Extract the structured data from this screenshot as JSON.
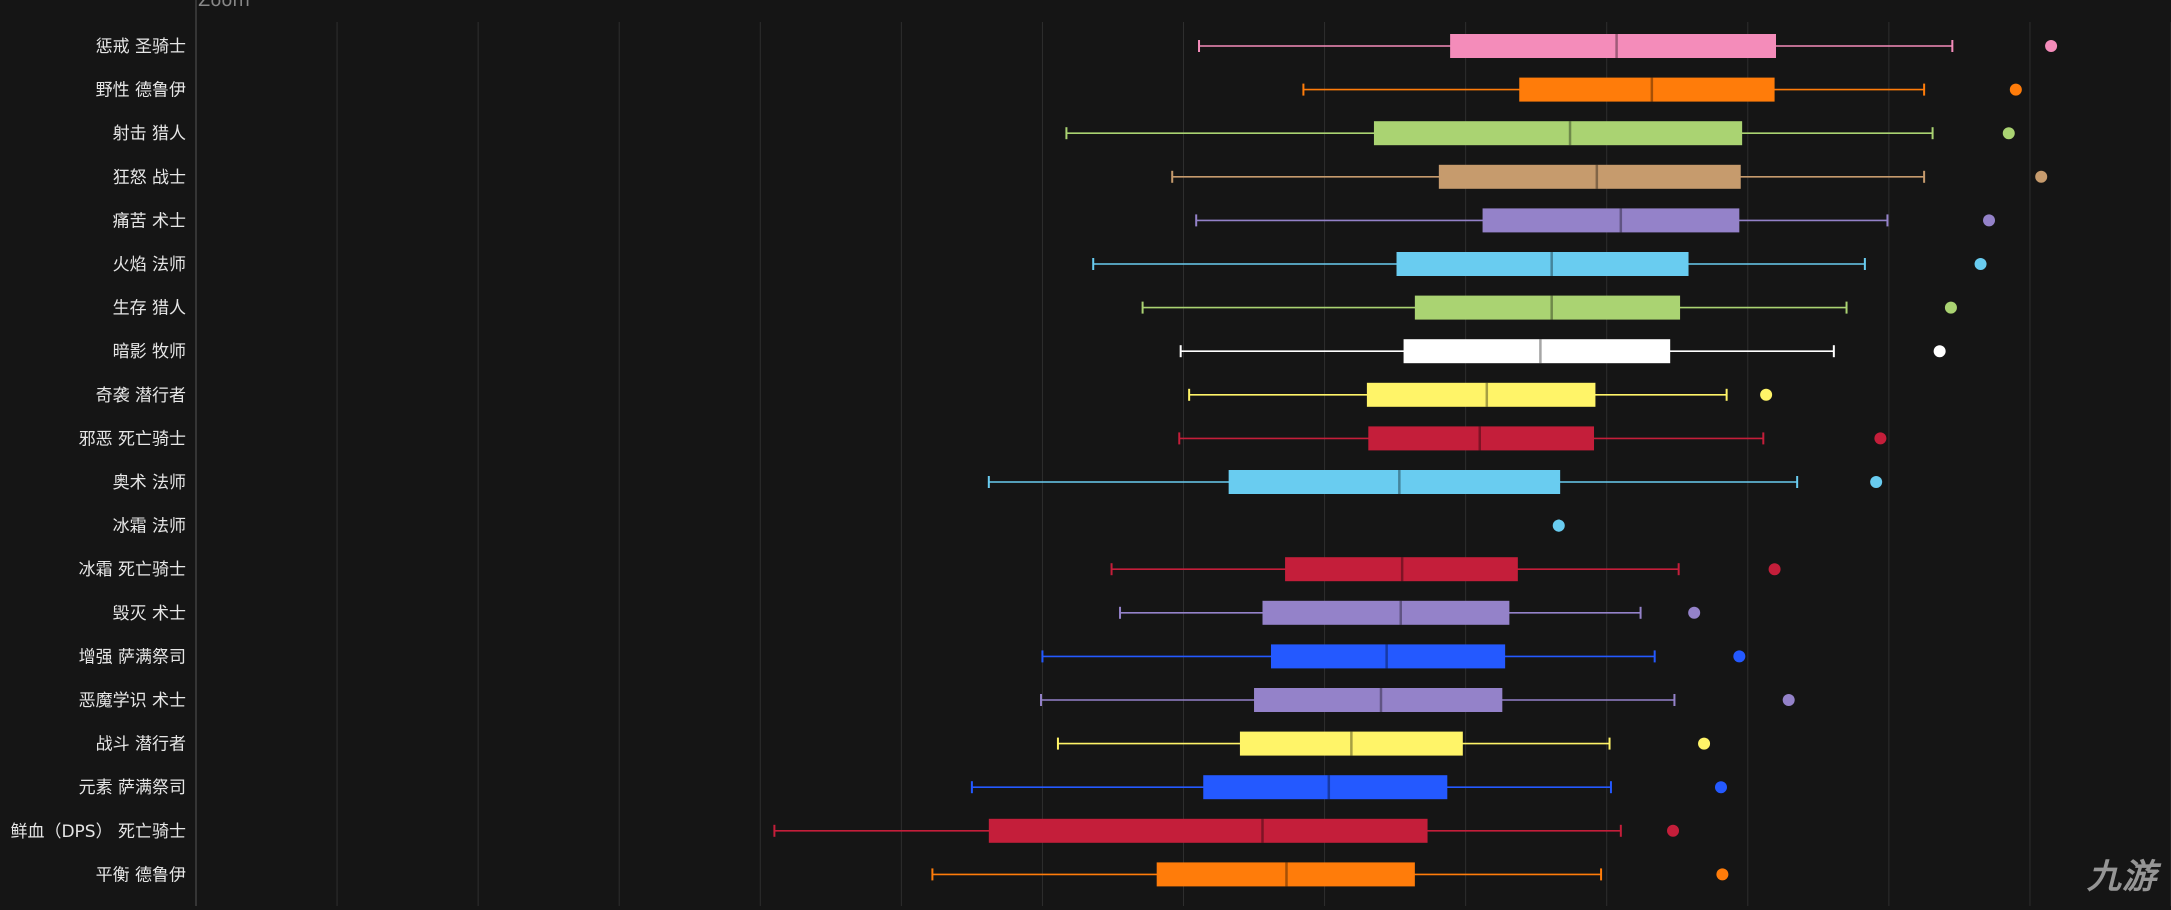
{
  "toolbar": {
    "zoom_label": "Zoom"
  },
  "watermark": "九游",
  "colors": {
    "background": "#151515",
    "grid": "#2e2e2e",
    "label": "#e6e6e6"
  },
  "chart_data": {
    "type": "boxplot",
    "title": "",
    "xlabel": "",
    "ylabel": "",
    "xlim": [
      -450,
      950
    ],
    "grid": true,
    "legend": "none",
    "series": [
      {
        "name": "惩戒 圣骑士",
        "color": "#f48cba",
        "whisker_low": 261,
        "q1": 439,
        "median": 557,
        "q3": 670,
        "whisker_high": 795,
        "outliers": [
          865
        ]
      },
      {
        "name": "野性 德鲁伊",
        "color": "#ff7c0a",
        "whisker_low": 335,
        "q1": 488,
        "median": 582,
        "q3": 669,
        "whisker_high": 775,
        "outliers": [
          840
        ]
      },
      {
        "name": "射击 猎人",
        "color": "#aad372",
        "whisker_low": 167,
        "q1": 385,
        "median": 524,
        "q3": 646,
        "whisker_high": 781,
        "outliers": [
          835
        ]
      },
      {
        "name": "狂怒 战士",
        "color": "#c69b6d",
        "whisker_low": 242,
        "q1": 431,
        "median": 543,
        "q3": 645,
        "whisker_high": 775,
        "outliers": [
          858
        ]
      },
      {
        "name": "痛苦 术士",
        "color": "#9482c9",
        "whisker_low": 259,
        "q1": 462,
        "median": 560,
        "q3": 644,
        "whisker_high": 749,
        "outliers": [
          821
        ]
      },
      {
        "name": "火焰 法师",
        "color": "#69ccf0",
        "whisker_low": 186,
        "q1": 401,
        "median": 511,
        "q3": 608,
        "whisker_high": 733,
        "outliers": [
          815
        ]
      },
      {
        "name": "生存 猎人",
        "color": "#aad372",
        "whisker_low": 221,
        "q1": 414,
        "median": 511,
        "q3": 602,
        "whisker_high": 720,
        "outliers": [
          794
        ]
      },
      {
        "name": "暗影 牧师",
        "color": "#ffffff",
        "whisker_low": 248,
        "q1": 406,
        "median": 503,
        "q3": 595,
        "whisker_high": 711,
        "outliers": [
          786
        ]
      },
      {
        "name": "奇袭 潜行者",
        "color": "#fff468",
        "whisker_low": 254,
        "q1": 380,
        "median": 465,
        "q3": 542,
        "whisker_high": 635,
        "outliers": [
          663
        ]
      },
      {
        "name": "邪恶 死亡骑士",
        "color": "#c41e3a",
        "whisker_low": 247,
        "q1": 381,
        "median": 460,
        "q3": 541,
        "whisker_high": 661,
        "outliers": [
          744
        ]
      },
      {
        "name": "奥术 法师",
        "color": "#69ccf0",
        "whisker_low": 112,
        "q1": 282,
        "median": 403,
        "q3": 517,
        "whisker_high": 685,
        "outliers": [
          741
        ]
      },
      {
        "name": "冰霜 法师",
        "color": "#69ccf0",
        "whisker_low": 516,
        "q1": 516,
        "median": 516,
        "q3": 516,
        "whisker_high": 516,
        "outliers": []
      },
      {
        "name": "冰霜 死亡骑士",
        "color": "#c41e3a",
        "whisker_low": 199,
        "q1": 322,
        "median": 405,
        "q3": 487,
        "whisker_high": 601,
        "outliers": [
          669
        ]
      },
      {
        "name": "毁灭 术士",
        "color": "#9482c9",
        "whisker_low": 205,
        "q1": 306,
        "median": 404,
        "q3": 481,
        "whisker_high": 574,
        "outliers": [
          612
        ]
      },
      {
        "name": "增强 萨满祭司",
        "color": "#2459ff",
        "whisker_low": 150,
        "q1": 312,
        "median": 394,
        "q3": 478,
        "whisker_high": 584,
        "outliers": [
          644
        ]
      },
      {
        "name": "恶魔学识 术士",
        "color": "#9482c9",
        "whisker_low": 149,
        "q1": 300,
        "median": 390,
        "q3": 476,
        "whisker_high": 598,
        "outliers": [
          679
        ]
      },
      {
        "name": "战斗 潜行者",
        "color": "#fff468",
        "whisker_low": 161,
        "q1": 290,
        "median": 369,
        "q3": 448,
        "whisker_high": 552,
        "outliers": [
          619
        ]
      },
      {
        "name": "元素 萨满祭司",
        "color": "#2459ff",
        "whisker_low": 100,
        "q1": 264,
        "median": 353,
        "q3": 437,
        "whisker_high": 553,
        "outliers": [
          631
        ]
      },
      {
        "name": "鲜血（DPS） 死亡骑士",
        "color": "#c41e3a",
        "whisker_low": -40,
        "q1": 112,
        "median": 306,
        "q3": 423,
        "whisker_high": 560,
        "outliers": [
          597
        ]
      },
      {
        "name": "平衡 德鲁伊",
        "color": "#ff7c0a",
        "whisker_low": 72,
        "q1": 231,
        "median": 323,
        "q3": 414,
        "whisker_high": 546,
        "outliers": [
          632
        ]
      }
    ]
  }
}
